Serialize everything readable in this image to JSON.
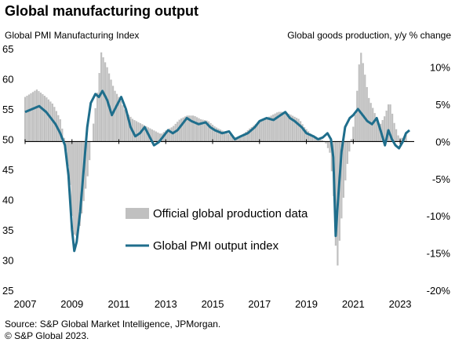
{
  "title": "Global manufacturing output",
  "left_axis_label": "Global PMI Manufacturing Index",
  "right_axis_label": "Global goods production, y/y % change",
  "source": "Source: S&P Global Market Intelligence, JPMorgan.",
  "copyright": "© S&P Global 2023.",
  "colors": {
    "bars": "#c0c0c0",
    "line": "#1f6e8c"
  },
  "chart_data": {
    "type": "bar+line",
    "x_ticks": [
      "2007",
      "2009",
      "2011",
      "2013",
      "2015",
      "2017",
      "2019",
      "2021",
      "2023"
    ],
    "x_range": [
      2007.0,
      2023.6
    ],
    "left_axis": {
      "ticks": [
        25,
        30,
        35,
        40,
        45,
        50,
        55,
        60,
        65
      ],
      "ylim": [
        25,
        65
      ]
    },
    "right_axis": {
      "ticks": [
        "-20%",
        "-15%",
        "-10%",
        "-5%",
        "0%",
        "5%",
        "10%"
      ],
      "ylim": [
        -20,
        12.5
      ]
    },
    "legend": [
      {
        "name": "Official global production data",
        "kind": "bar"
      },
      {
        "name": "Global PMI output index",
        "kind": "line"
      }
    ],
    "series": [
      {
        "name": "Official global production data",
        "kind": "bar",
        "axis": "right",
        "points": [
          [
            2007.0,
            6.0
          ],
          [
            2007.5,
            7.0
          ],
          [
            2007.9,
            6.0
          ],
          [
            2008.2,
            5.0
          ],
          [
            2008.5,
            3.0
          ],
          [
            2008.7,
            0.0
          ],
          [
            2008.9,
            -5.0
          ],
          [
            2009.0,
            -10.0
          ],
          [
            2009.1,
            -13.0
          ],
          [
            2009.3,
            -12.0
          ],
          [
            2009.5,
            -8.0
          ],
          [
            2009.7,
            -4.0
          ],
          [
            2009.9,
            2.0
          ],
          [
            2010.1,
            7.0
          ],
          [
            2010.25,
            12.0
          ],
          [
            2010.5,
            10.0
          ],
          [
            2010.8,
            7.0
          ],
          [
            2011.0,
            6.0
          ],
          [
            2011.3,
            4.0
          ],
          [
            2011.6,
            3.0
          ],
          [
            2011.9,
            2.5
          ],
          [
            2012.2,
            2.0
          ],
          [
            2012.5,
            1.5
          ],
          [
            2012.8,
            1.0
          ],
          [
            2013.0,
            1.5
          ],
          [
            2013.3,
            2.0
          ],
          [
            2013.6,
            3.0
          ],
          [
            2013.9,
            3.5
          ],
          [
            2014.2,
            3.5
          ],
          [
            2014.5,
            3.0
          ],
          [
            2014.8,
            2.8
          ],
          [
            2015.1,
            2.0
          ],
          [
            2015.4,
            1.5
          ],
          [
            2015.7,
            1.0
          ],
          [
            2016.0,
            0.5
          ],
          [
            2016.3,
            1.0
          ],
          [
            2016.6,
            1.8
          ],
          [
            2016.9,
            2.5
          ],
          [
            2017.2,
            3.0
          ],
          [
            2017.5,
            3.5
          ],
          [
            2017.8,
            4.0
          ],
          [
            2018.1,
            4.0
          ],
          [
            2018.4,
            3.5
          ],
          [
            2018.7,
            3.0
          ],
          [
            2018.9,
            2.0
          ],
          [
            2019.2,
            1.0
          ],
          [
            2019.5,
            0.5
          ],
          [
            2019.8,
            0.0
          ],
          [
            2020.0,
            -1.5
          ],
          [
            2020.15,
            -6.0
          ],
          [
            2020.3,
            -18.0
          ],
          [
            2020.45,
            -12.0
          ],
          [
            2020.6,
            -7.0
          ],
          [
            2020.75,
            -3.0
          ],
          [
            2020.9,
            0.0
          ],
          [
            2021.1,
            4.0
          ],
          [
            2021.3,
            12.5
          ],
          [
            2021.45,
            10.0
          ],
          [
            2021.65,
            6.0
          ],
          [
            2021.9,
            4.0
          ],
          [
            2022.1,
            2.0
          ],
          [
            2022.35,
            3.5
          ],
          [
            2022.55,
            5.5
          ],
          [
            2022.75,
            2.5
          ],
          [
            2022.95,
            0.5
          ],
          [
            2023.1,
            0.5
          ],
          [
            2023.3,
            1.0
          ]
        ]
      },
      {
        "name": "Global PMI output index",
        "kind": "line",
        "axis": "left",
        "points": [
          [
            2007.0,
            54.5
          ],
          [
            2007.3,
            55.0
          ],
          [
            2007.6,
            55.5
          ],
          [
            2007.9,
            54.5
          ],
          [
            2008.1,
            53.5
          ],
          [
            2008.3,
            52.5
          ],
          [
            2008.5,
            51.0
          ],
          [
            2008.7,
            49.0
          ],
          [
            2008.85,
            44.0
          ],
          [
            2009.0,
            35.0
          ],
          [
            2009.1,
            31.5
          ],
          [
            2009.2,
            33.0
          ],
          [
            2009.35,
            38.0
          ],
          [
            2009.5,
            45.0
          ],
          [
            2009.65,
            52.0
          ],
          [
            2009.8,
            56.0
          ],
          [
            2010.0,
            57.5
          ],
          [
            2010.15,
            57.0
          ],
          [
            2010.3,
            58.0
          ],
          [
            2010.5,
            56.5
          ],
          [
            2010.7,
            54.0
          ],
          [
            2010.9,
            55.5
          ],
          [
            2011.1,
            57.0
          ],
          [
            2011.3,
            55.0
          ],
          [
            2011.5,
            52.0
          ],
          [
            2011.7,
            50.5
          ],
          [
            2011.9,
            51.0
          ],
          [
            2012.1,
            52.0
          ],
          [
            2012.3,
            50.5
          ],
          [
            2012.5,
            49.0
          ],
          [
            2012.7,
            49.5
          ],
          [
            2012.9,
            50.5
          ],
          [
            2013.1,
            51.5
          ],
          [
            2013.3,
            51.0
          ],
          [
            2013.5,
            51.5
          ],
          [
            2013.7,
            52.5
          ],
          [
            2013.9,
            53.5
          ],
          [
            2014.1,
            53.0
          ],
          [
            2014.4,
            52.5
          ],
          [
            2014.7,
            52.8
          ],
          [
            2014.9,
            52.0
          ],
          [
            2015.1,
            51.5
          ],
          [
            2015.4,
            51.0
          ],
          [
            2015.7,
            51.3
          ],
          [
            2015.95,
            50.0
          ],
          [
            2016.2,
            50.5
          ],
          [
            2016.5,
            51.0
          ],
          [
            2016.8,
            52.0
          ],
          [
            2017.0,
            53.0
          ],
          [
            2017.3,
            53.5
          ],
          [
            2017.6,
            53.2
          ],
          [
            2017.9,
            54.0
          ],
          [
            2018.1,
            54.5
          ],
          [
            2018.3,
            53.5
          ],
          [
            2018.5,
            53.0
          ],
          [
            2018.8,
            52.0
          ],
          [
            2019.0,
            51.0
          ],
          [
            2019.3,
            50.5
          ],
          [
            2019.5,
            50.0
          ],
          [
            2019.7,
            50.3
          ],
          [
            2019.9,
            51.0
          ],
          [
            2020.05,
            50.0
          ],
          [
            2020.15,
            47.0
          ],
          [
            2020.25,
            34.0
          ],
          [
            2020.35,
            40.0
          ],
          [
            2020.5,
            48.0
          ],
          [
            2020.65,
            52.0
          ],
          [
            2020.85,
            53.5
          ],
          [
            2021.0,
            54.0
          ],
          [
            2021.2,
            55.0
          ],
          [
            2021.4,
            54.0
          ],
          [
            2021.6,
            53.0
          ],
          [
            2021.8,
            52.5
          ],
          [
            2022.0,
            53.5
          ],
          [
            2022.2,
            51.0
          ],
          [
            2022.35,
            49.0
          ],
          [
            2022.5,
            51.5
          ],
          [
            2022.65,
            50.0
          ],
          [
            2022.8,
            49.0
          ],
          [
            2022.95,
            48.5
          ],
          [
            2023.1,
            49.5
          ],
          [
            2023.25,
            51.0
          ],
          [
            2023.4,
            51.5
          ]
        ]
      }
    ]
  }
}
